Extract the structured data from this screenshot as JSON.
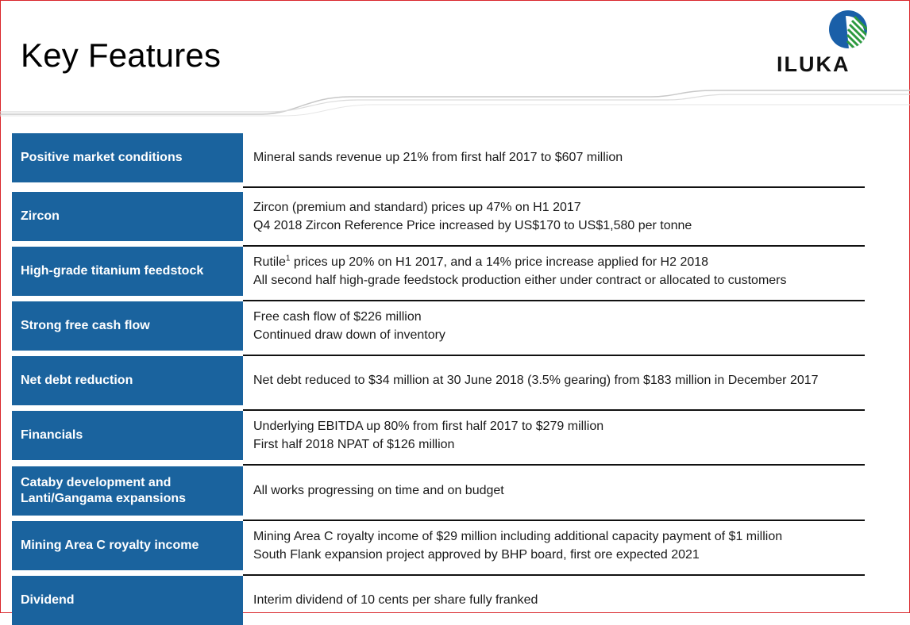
{
  "title": "Key Features",
  "logo": {
    "text": "ILUKA"
  },
  "colors": {
    "label_bg": "#1a639e",
    "frame": "#d9262b",
    "logo_blue": "#1a5fa8",
    "logo_green": "#2d9a3f"
  },
  "rows": [
    {
      "label": "Positive market conditions",
      "lines": [
        "Mineral sands revenue up 21% from first half 2017 to $607 million"
      ]
    },
    {
      "label": "Zircon",
      "lines": [
        "Zircon (premium and standard) prices up 47% on H1 2017",
        "Q4 2018 Zircon Reference Price increased by US$170 to US$1,580 per tonne"
      ]
    },
    {
      "label": "High-grade titanium feedstock",
      "line1_prefix": "Rutile",
      "line1_sup": "1",
      "line1_suffix": " prices up 20% on H1 2017, and a 14% price increase applied for H2 2018",
      "lines": [
        "All second half high-grade feedstock production either under contract or allocated to customers"
      ]
    },
    {
      "label": "Strong free cash flow",
      "lines": [
        "Free cash flow of $226 million",
        "Continued draw down of inventory"
      ]
    },
    {
      "label": "Net debt reduction",
      "lines": [
        "Net debt reduced to $34 million at 30 June 2018 (3.5% gearing) from $183 million in December 2017"
      ]
    },
    {
      "label": "Financials",
      "lines": [
        "Underlying EBITDA up 80% from first half 2017 to $279 million",
        "First half 2018 NPAT of $126 million"
      ]
    },
    {
      "label_line1": "Cataby development and",
      "label_line2": "Lanti/Gangama expansions",
      "lines": [
        "All works progressing on time and on budget"
      ]
    },
    {
      "label": "Mining Area C royalty income",
      "lines": [
        "Mining Area C royalty income of $29 million including additional capacity payment of $1 million",
        "South Flank expansion project approved by BHP board, first ore expected 2021"
      ]
    },
    {
      "label": "Dividend",
      "lines": [
        "Interim dividend of 10 cents per share fully franked"
      ]
    }
  ]
}
